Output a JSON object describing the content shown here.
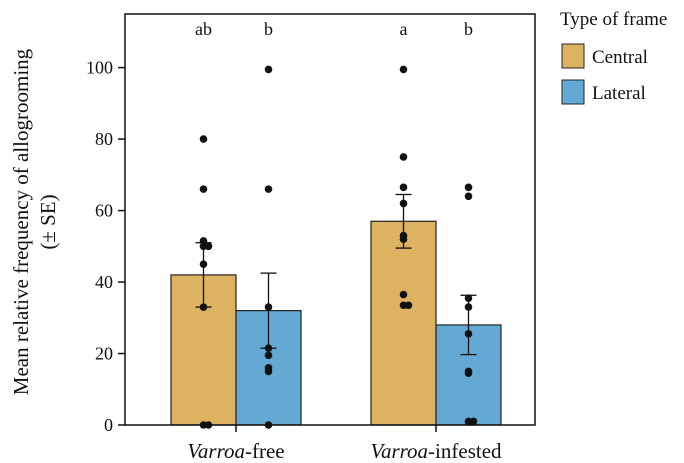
{
  "chart_data": {
    "type": "bar",
    "title": "",
    "ylabel": "Mean relative frequency of allogrooming",
    "ylabel_sub": "(± SE)",
    "xlabel": "",
    "ylim": [
      0,
      115
    ],
    "yticks": [
      0,
      20,
      40,
      60,
      80,
      100
    ],
    "categories": [
      {
        "italic": "Varroa",
        "rest": "-free"
      },
      {
        "italic": "Varroa",
        "rest": "-infested"
      }
    ],
    "legend": {
      "title": "Type of frame",
      "placement": "top-right outside"
    },
    "series": [
      {
        "name": "Central",
        "color": "#DDB362",
        "means": [
          42.0,
          57.0
        ],
        "se": [
          9.0,
          7.5
        ],
        "points": [
          [
            80,
            66,
            51.5,
            50,
            50,
            45,
            33,
            0,
            0
          ],
          [
            99.5,
            75,
            66.5,
            62,
            53,
            52,
            36.5,
            33.5,
            33.5
          ]
        ]
      },
      {
        "name": "Lateral",
        "color": "#63A9D3",
        "means": [
          32.0,
          28.0
        ],
        "se": [
          10.5,
          8.3
        ],
        "points": [
          [
            99.5,
            66,
            33,
            21.5,
            19.5,
            16,
            15,
            0
          ],
          [
            66.5,
            64,
            35.5,
            33,
            25.5,
            15,
            14.5,
            1,
            1
          ]
        ]
      }
    ],
    "significance": [
      [
        "ab",
        "b"
      ],
      [
        "a",
        "b"
      ]
    ]
  }
}
